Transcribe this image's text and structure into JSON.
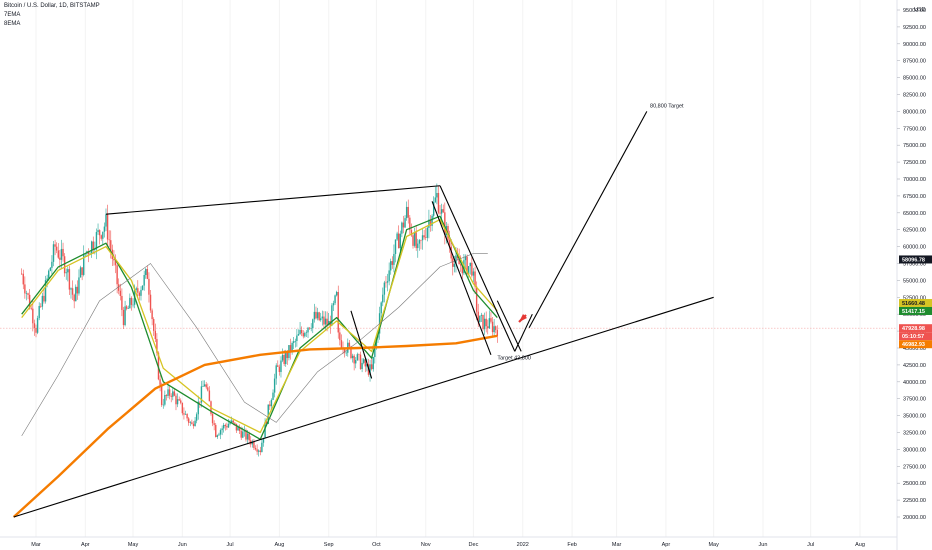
{
  "header": {
    "title": "Bitcoin / U.S. Dollar, 1D, BITSTAMP",
    "legend": [
      "7EMA",
      "8EMA"
    ]
  },
  "currency": "USD",
  "colors": {
    "up": "#26a69a",
    "down": "#ef5350",
    "ema7": "#1e8c2e",
    "ema8": "#d6c423",
    "ma_long": "#f57c00",
    "ma_mid": "#7a7a7a",
    "lines": "#000000",
    "current_line": "#f4a9a9"
  },
  "chart_data": {
    "type": "candlestick",
    "symbol": "BTCUSD",
    "x_ticks": [
      "Mar",
      "Apr",
      "May",
      "Jun",
      "Jul",
      "Aug",
      "Sep",
      "Oct",
      "Nov",
      "Dec",
      "2022",
      "Feb",
      "Mar",
      "Apr",
      "May",
      "Jun",
      "Jul",
      "Aug"
    ],
    "y_ticks": [
      "20000.00",
      "22500.00",
      "25000.00",
      "27500.00",
      "30000.00",
      "32500.00",
      "35000.00",
      "37500.00",
      "40000.00",
      "42500.00",
      "45000.00",
      "47500.00",
      "50000.00",
      "52500.00",
      "55000.00",
      "57500.00",
      "60000.00",
      "62500.00",
      "65000.00",
      "67500.00",
      "70000.00",
      "72500.00",
      "75000.00",
      "77500.00",
      "80000.00",
      "82500.00",
      "85000.00",
      "87500.00",
      "90000.00",
      "92500.00",
      "95000.00"
    ],
    "y_range": [
      19000,
      96500
    ],
    "close_path": [
      [
        "2021-02-20",
        56000
      ],
      [
        "2021-03-01",
        48000
      ],
      [
        "2021-03-13",
        60000
      ],
      [
        "2021-03-20",
        57000
      ],
      [
        "2021-03-25",
        52000
      ],
      [
        "2021-04-01",
        59000
      ],
      [
        "2021-04-14",
        63500
      ],
      [
        "2021-04-25",
        49500
      ],
      [
        "2021-05-10",
        56000
      ],
      [
        "2021-05-19",
        37000
      ],
      [
        "2021-05-25",
        38500
      ],
      [
        "2021-06-07",
        33500
      ],
      [
        "2021-06-15",
        40000
      ],
      [
        "2021-06-22",
        32500
      ],
      [
        "2021-07-01",
        34000
      ],
      [
        "2021-07-20",
        30000
      ],
      [
        "2021-07-30",
        41500
      ],
      [
        "2021-08-14",
        47000
      ],
      [
        "2021-08-23",
        49500
      ],
      [
        "2021-09-01",
        48500
      ],
      [
        "2021-09-06",
        52500
      ],
      [
        "2021-09-07",
        46500
      ],
      [
        "2021-09-20",
        43000
      ],
      [
        "2021-09-28",
        41500
      ],
      [
        "2021-10-06",
        54500
      ],
      [
        "2021-10-20",
        65000
      ],
      [
        "2021-10-27",
        59000
      ],
      [
        "2021-11-08",
        67500
      ],
      [
        "2021-11-19",
        57500
      ],
      [
        "2021-11-30",
        57000
      ],
      [
        "2021-12-04",
        49000
      ],
      [
        "2021-12-10",
        48500
      ],
      [
        "2021-12-16",
        47900
      ]
    ],
    "series": [
      {
        "name": "7EMA",
        "points": [
          [
            "2021-02-20",
            50000
          ],
          [
            "2021-03-15",
            57000
          ],
          [
            "2021-04-14",
            60500
          ],
          [
            "2021-04-30",
            54000
          ],
          [
            "2021-05-20",
            40000
          ],
          [
            "2021-06-20",
            35500
          ],
          [
            "2021-07-20",
            31500
          ],
          [
            "2021-08-14",
            45000
          ],
          [
            "2021-09-06",
            49500
          ],
          [
            "2021-09-28",
            43500
          ],
          [
            "2021-10-20",
            62500
          ],
          [
            "2021-11-10",
            64500
          ],
          [
            "2021-12-01",
            53500
          ],
          [
            "2021-12-16",
            49500
          ]
        ]
      },
      {
        "name": "8EMA",
        "points": [
          [
            "2021-02-20",
            49500
          ],
          [
            "2021-03-15",
            56500
          ],
          [
            "2021-04-14",
            60000
          ],
          [
            "2021-04-30",
            55000
          ],
          [
            "2021-05-20",
            42000
          ],
          [
            "2021-06-20",
            36000
          ],
          [
            "2021-07-20",
            32500
          ],
          [
            "2021-08-14",
            44500
          ],
          [
            "2021-09-06",
            49000
          ],
          [
            "2021-09-28",
            44500
          ],
          [
            "2021-10-20",
            61500
          ],
          [
            "2021-11-10",
            64000
          ],
          [
            "2021-12-01",
            54500
          ],
          [
            "2021-12-16",
            50500
          ]
        ]
      },
      {
        "points": [
          [
            "2021-02-20",
            32000
          ],
          [
            "2021-03-15",
            41000
          ],
          [
            "2021-04-10",
            52000
          ],
          [
            "2021-05-12",
            57500
          ],
          [
            "2021-06-10",
            48000
          ],
          [
            "2021-07-10",
            37000
          ],
          [
            "2021-07-30",
            34000
          ],
          [
            "2021-08-25",
            41500
          ],
          [
            "2021-09-20",
            46000
          ],
          [
            "2021-10-15",
            51000
          ],
          [
            "2021-11-10",
            57000
          ],
          [
            "2021-12-01",
            59000
          ],
          [
            "2021-12-10",
            59000
          ]
        ]
      },
      {
        "points": [
          [
            "2021-02-15",
            20000
          ],
          [
            "2021-03-15",
            26000
          ],
          [
            "2021-04-15",
            33000
          ],
          [
            "2021-05-15",
            39000
          ],
          [
            "2021-06-15",
            42500
          ],
          [
            "2021-07-20",
            44000
          ],
          [
            "2021-08-20",
            44800
          ],
          [
            "2021-09-20",
            45000
          ],
          [
            "2021-10-20",
            45300
          ],
          [
            "2021-11-20",
            45700
          ],
          [
            "2021-12-16",
            46800
          ]
        ]
      }
    ],
    "price_labels": [
      {
        "text": "58096.78",
        "value": 58096.78,
        "color": "#131722"
      },
      {
        "text": "51660.48",
        "value": 51660.48,
        "color": "#d6c423"
      },
      {
        "text": "51417.15",
        "value": 51417.15,
        "color": "#1e8c2e"
      },
      {
        "text": "47928.98",
        "value": 47928.98,
        "color": "#ef5350"
      },
      {
        "text": "05:10:57",
        "value": 47250,
        "color": "#ef5350"
      },
      {
        "text": "46982.93",
        "value": 46982.93,
        "color": "#f57c00"
      }
    ],
    "annotations": [
      {
        "text": "80,800 Target",
        "date": "2022-03-22",
        "value": 80600
      },
      {
        "text": "Target 43,800",
        "date": "2021-12-16",
        "value": 43300
      }
    ],
    "trendlines": [
      {
        "from": [
          "2021-02-15",
          20000
        ],
        "to": [
          "2022-05-01",
          52500
        ]
      },
      {
        "from": [
          "2021-04-14",
          64800
        ],
        "to": [
          "2021-11-10",
          69000
        ]
      },
      {
        "from": [
          "2021-11-10",
          69000
        ],
        "to": [
          "2021-12-27",
          44500
        ]
      },
      {
        "from": [
          "2021-11-05",
          66700
        ],
        "to": [
          "2021-12-12",
          44000
        ]
      },
      {
        "from": [
          "2021-12-16",
          52000
        ],
        "to": [
          "2021-12-31",
          44500
        ]
      },
      {
        "from": [
          "2021-12-27",
          44500
        ],
        "to": [
          "2022-01-07",
          50000
        ]
      },
      {
        "from": [
          "2022-01-05",
          48000
        ],
        "to": [
          "2022-03-20",
          80000
        ]
      },
      {
        "from": [
          "2021-09-15",
          50500
        ],
        "to": [
          "2021-09-28",
          40500
        ]
      }
    ]
  }
}
